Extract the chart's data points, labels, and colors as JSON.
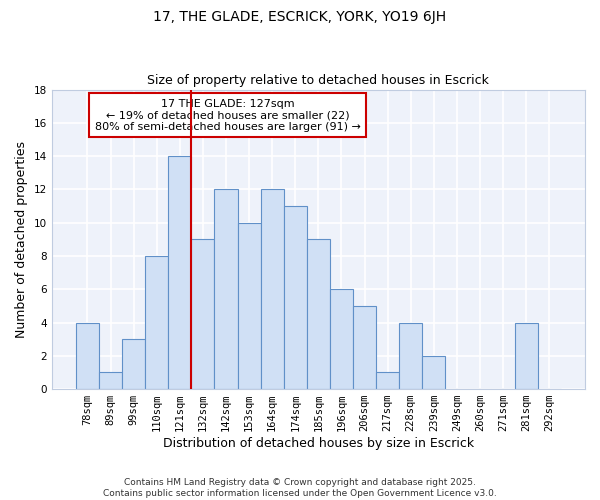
{
  "title1": "17, THE GLADE, ESCRICK, YORK, YO19 6JH",
  "title2": "Size of property relative to detached houses in Escrick",
  "xlabel": "Distribution of detached houses by size in Escrick",
  "ylabel": "Number of detached properties",
  "categories": [
    "78sqm",
    "89sqm",
    "99sqm",
    "110sqm",
    "121sqm",
    "132sqm",
    "142sqm",
    "153sqm",
    "164sqm",
    "174sqm",
    "185sqm",
    "196sqm",
    "206sqm",
    "217sqm",
    "228sqm",
    "239sqm",
    "249sqm",
    "260sqm",
    "271sqm",
    "281sqm",
    "292sqm"
  ],
  "values": [
    4,
    1,
    3,
    8,
    14,
    9,
    12,
    10,
    12,
    11,
    9,
    6,
    5,
    1,
    4,
    2,
    0,
    0,
    0,
    4,
    0
  ],
  "bar_color": "#d0e0f5",
  "bar_edgecolor": "#6090c8",
  "vline_x_index": 5,
  "vline_color": "#cc0000",
  "annotation_text": "17 THE GLADE: 127sqm\n← 19% of detached houses are smaller (22)\n80% of semi-detached houses are larger (91) →",
  "annotation_box_color": "white",
  "annotation_box_edgecolor": "#cc0000",
  "ylim": [
    0,
    18
  ],
  "yticks": [
    0,
    2,
    4,
    6,
    8,
    10,
    12,
    14,
    16,
    18
  ],
  "background_color": "white",
  "plot_background_color": "#eef2fa",
  "grid_color": "white",
  "footer": "Contains HM Land Registry data © Crown copyright and database right 2025.\nContains public sector information licensed under the Open Government Licence v3.0."
}
